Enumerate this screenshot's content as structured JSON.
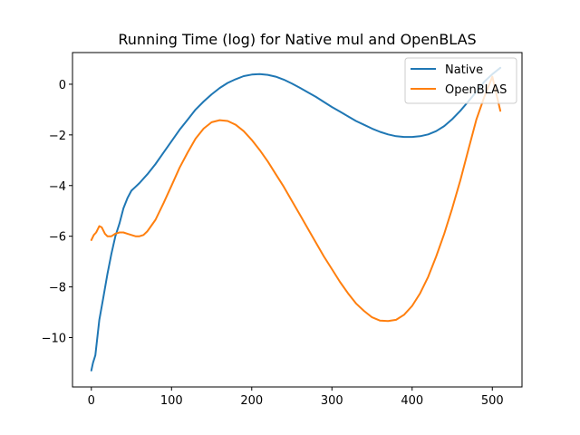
{
  "chart_data": {
    "type": "line",
    "title": "Running Time (log) for Native mul and OpenBLAS",
    "xlabel": "",
    "ylabel": "",
    "xlim": [
      -23.5,
      537
    ],
    "ylim": [
      -11.95,
      1.25
    ],
    "x_ticks": [
      0,
      100,
      200,
      300,
      400,
      500
    ],
    "y_ticks": [
      0,
      -2,
      -4,
      -6,
      -8,
      -10
    ],
    "grid": false,
    "legend_position": "top-right",
    "series": [
      {
        "name": "Native",
        "color": "#1f77b4",
        "x": [
          0,
          2,
          5,
          10,
          15,
          20,
          25,
          30,
          35,
          40,
          45,
          50,
          55,
          60,
          70,
          80,
          90,
          100,
          110,
          120,
          130,
          140,
          150,
          160,
          170,
          180,
          190,
          200,
          210,
          220,
          230,
          240,
          250,
          260,
          270,
          280,
          290,
          300,
          310,
          320,
          330,
          340,
          350,
          360,
          370,
          380,
          390,
          400,
          410,
          420,
          430,
          440,
          450,
          460,
          470,
          480,
          490,
          500,
          510
        ],
        "y": [
          -11.3,
          -11.0,
          -10.7,
          -9.3,
          -8.4,
          -7.5,
          -6.7,
          -6.0,
          -5.5,
          -4.9,
          -4.5,
          -4.2,
          -4.05,
          -3.9,
          -3.55,
          -3.15,
          -2.7,
          -2.25,
          -1.8,
          -1.4,
          -1.0,
          -0.68,
          -0.4,
          -0.15,
          0.05,
          0.2,
          0.32,
          0.38,
          0.4,
          0.37,
          0.3,
          0.18,
          0.03,
          -0.14,
          -0.32,
          -0.5,
          -0.7,
          -0.9,
          -1.08,
          -1.27,
          -1.45,
          -1.6,
          -1.75,
          -1.88,
          -1.98,
          -2.05,
          -2.08,
          -2.08,
          -2.05,
          -1.98,
          -1.85,
          -1.65,
          -1.38,
          -1.05,
          -0.68,
          -0.3,
          0.1,
          0.4,
          0.65
        ]
      },
      {
        "name": "OpenBLAS",
        "color": "#ff7f0e",
        "x": [
          0,
          3,
          6,
          10,
          13,
          17,
          20,
          25,
          30,
          35,
          40,
          45,
          50,
          55,
          60,
          65,
          70,
          80,
          90,
          100,
          110,
          120,
          130,
          140,
          150,
          160,
          170,
          180,
          190,
          200,
          210,
          220,
          230,
          240,
          250,
          260,
          270,
          280,
          290,
          300,
          310,
          320,
          330,
          340,
          350,
          360,
          370,
          380,
          390,
          400,
          410,
          420,
          430,
          440,
          450,
          460,
          470,
          480,
          490,
          500,
          510
        ],
        "y": [
          -6.15,
          -5.95,
          -5.85,
          -5.6,
          -5.65,
          -5.9,
          -6.0,
          -6.0,
          -5.9,
          -5.85,
          -5.85,
          -5.9,
          -5.95,
          -6.0,
          -6.0,
          -5.95,
          -5.8,
          -5.35,
          -4.7,
          -4.0,
          -3.3,
          -2.7,
          -2.15,
          -1.75,
          -1.5,
          -1.42,
          -1.45,
          -1.6,
          -1.85,
          -2.2,
          -2.6,
          -3.05,
          -3.55,
          -4.05,
          -4.6,
          -5.15,
          -5.7,
          -6.25,
          -6.8,
          -7.3,
          -7.8,
          -8.25,
          -8.65,
          -8.95,
          -9.2,
          -9.33,
          -9.35,
          -9.3,
          -9.1,
          -8.75,
          -8.25,
          -7.6,
          -6.8,
          -5.9,
          -4.9,
          -3.8,
          -2.6,
          -1.4,
          -0.5,
          0.3,
          -1.05
        ]
      }
    ]
  }
}
